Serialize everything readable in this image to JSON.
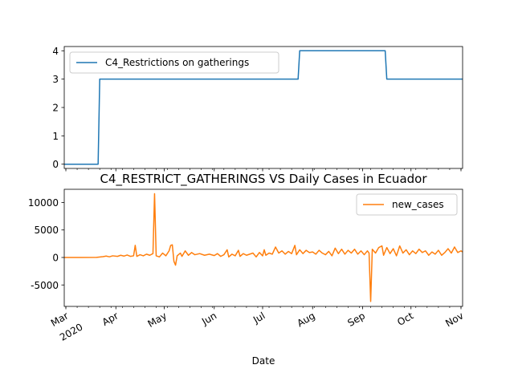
{
  "chart_data": [
    {
      "type": "line",
      "title": "",
      "xlabel": "",
      "ylabel": "",
      "ylim": [
        -0.15,
        4.15
      ],
      "yticks": [
        0,
        1,
        2,
        3,
        4
      ],
      "legend_position": "upper-left",
      "grid": false,
      "series": [
        {
          "name": "C4_Restrictions on gatherings",
          "color": "#1f77b4",
          "points": [
            [
              "2020-02-29",
              0
            ],
            [
              "2020-03-21",
              0
            ],
            [
              "2020-03-22",
              3
            ],
            [
              "2020-07-23",
              3
            ],
            [
              "2020-07-24",
              4
            ],
            [
              "2020-09-15",
              4
            ],
            [
              "2020-09-16",
              3
            ],
            [
              "2020-11-02",
              3
            ]
          ]
        }
      ]
    },
    {
      "type": "line",
      "title": "C4_RESTRICT_GATHERINGS VS Daily Cases in Ecuador",
      "xlabel": "Date",
      "ylabel": "",
      "ylim": [
        -8900,
        12400
      ],
      "yticks": [
        -5000,
        0,
        5000,
        10000
      ],
      "legend_position": "upper-right",
      "grid": false,
      "x_axis": {
        "range": [
          "2020-02-29",
          "2020-11-02"
        ],
        "major_ticks": [
          {
            "date": "2020-03-01",
            "label": "Mar",
            "year_label": "2020"
          },
          {
            "date": "2020-04-01",
            "label": "Apr"
          },
          {
            "date": "2020-05-01",
            "label": "May"
          },
          {
            "date": "2020-06-01",
            "label": "Jun"
          },
          {
            "date": "2020-07-01",
            "label": "Jul"
          },
          {
            "date": "2020-08-01",
            "label": "Aug"
          },
          {
            "date": "2020-09-01",
            "label": "Sep"
          },
          {
            "date": "2020-10-01",
            "label": "Oct"
          },
          {
            "date": "2020-11-01",
            "label": "Nov"
          }
        ]
      },
      "series": [
        {
          "name": "new_cases",
          "color": "#ff7f0e",
          "points": [
            [
              "2020-02-29",
              0
            ],
            [
              "2020-03-10",
              0
            ],
            [
              "2020-03-20",
              20
            ],
            [
              "2020-03-24",
              150
            ],
            [
              "2020-03-26",
              250
            ],
            [
              "2020-03-28",
              120
            ],
            [
              "2020-03-30",
              300
            ],
            [
              "2020-04-02",
              200
            ],
            [
              "2020-04-04",
              400
            ],
            [
              "2020-04-06",
              250
            ],
            [
              "2020-04-08",
              450
            ],
            [
              "2020-04-10",
              200
            ],
            [
              "2020-04-12",
              300
            ],
            [
              "2020-04-13",
              2200
            ],
            [
              "2020-04-14",
              200
            ],
            [
              "2020-04-16",
              500
            ],
            [
              "2020-04-18",
              300
            ],
            [
              "2020-04-20",
              600
            ],
            [
              "2020-04-22",
              400
            ],
            [
              "2020-04-24",
              700
            ],
            [
              "2020-04-25",
              11600
            ],
            [
              "2020-04-26",
              300
            ],
            [
              "2020-04-28",
              100
            ],
            [
              "2020-04-30",
              800
            ],
            [
              "2020-05-02",
              300
            ],
            [
              "2020-05-04",
              1200
            ],
            [
              "2020-05-05",
              2200
            ],
            [
              "2020-05-06",
              2300
            ],
            [
              "2020-05-07",
              -700
            ],
            [
              "2020-05-08",
              -1400
            ],
            [
              "2020-05-09",
              300
            ],
            [
              "2020-05-11",
              800
            ],
            [
              "2020-05-12",
              200
            ],
            [
              "2020-05-14",
              1200
            ],
            [
              "2020-05-16",
              400
            ],
            [
              "2020-05-18",
              900
            ],
            [
              "2020-05-20",
              500
            ],
            [
              "2020-05-23",
              700
            ],
            [
              "2020-05-26",
              400
            ],
            [
              "2020-05-29",
              600
            ],
            [
              "2020-06-01",
              350
            ],
            [
              "2020-06-03",
              700
            ],
            [
              "2020-06-05",
              200
            ],
            [
              "2020-06-07",
              500
            ],
            [
              "2020-06-09",
              1400
            ],
            [
              "2020-06-10",
              100
            ],
            [
              "2020-06-12",
              600
            ],
            [
              "2020-06-14",
              300
            ],
            [
              "2020-06-16",
              1300
            ],
            [
              "2020-06-17",
              200
            ],
            [
              "2020-06-19",
              700
            ],
            [
              "2020-06-21",
              400
            ],
            [
              "2020-06-23",
              600
            ],
            [
              "2020-06-25",
              800
            ],
            [
              "2020-06-27",
              100
            ],
            [
              "2020-06-29",
              900
            ],
            [
              "2020-07-01",
              300
            ],
            [
              "2020-07-02",
              1400
            ],
            [
              "2020-07-03",
              400
            ],
            [
              "2020-07-05",
              800
            ],
            [
              "2020-07-07",
              600
            ],
            [
              "2020-07-09",
              1900
            ],
            [
              "2020-07-11",
              800
            ],
            [
              "2020-07-13",
              1200
            ],
            [
              "2020-07-15",
              600
            ],
            [
              "2020-07-17",
              1100
            ],
            [
              "2020-07-19",
              700
            ],
            [
              "2020-07-21",
              2200
            ],
            [
              "2020-07-22",
              500
            ],
            [
              "2020-07-24",
              1400
            ],
            [
              "2020-07-26",
              700
            ],
            [
              "2020-07-28",
              1300
            ],
            [
              "2020-07-30",
              900
            ],
            [
              "2020-08-01",
              1000
            ],
            [
              "2020-08-03",
              600
            ],
            [
              "2020-08-05",
              1300
            ],
            [
              "2020-08-07",
              800
            ],
            [
              "2020-08-09",
              500
            ],
            [
              "2020-08-11",
              1100
            ],
            [
              "2020-08-13",
              300
            ],
            [
              "2020-08-15",
              1700
            ],
            [
              "2020-08-17",
              700
            ],
            [
              "2020-08-19",
              1500
            ],
            [
              "2020-08-21",
              600
            ],
            [
              "2020-08-23",
              1300
            ],
            [
              "2020-08-25",
              800
            ],
            [
              "2020-08-27",
              1500
            ],
            [
              "2020-08-29",
              600
            ],
            [
              "2020-08-31",
              1200
            ],
            [
              "2020-09-02",
              500
            ],
            [
              "2020-09-04",
              1200
            ],
            [
              "2020-09-05",
              800
            ],
            [
              "2020-09-06",
              -8000
            ],
            [
              "2020-09-07",
              1500
            ],
            [
              "2020-09-09",
              800
            ],
            [
              "2020-09-11",
              1800
            ],
            [
              "2020-09-13",
              2100
            ],
            [
              "2020-09-14",
              400
            ],
            [
              "2020-09-16",
              1800
            ],
            [
              "2020-09-18",
              700
            ],
            [
              "2020-09-20",
              1600
            ],
            [
              "2020-09-22",
              300
            ],
            [
              "2020-09-24",
              2100
            ],
            [
              "2020-09-26",
              800
            ],
            [
              "2020-09-28",
              1400
            ],
            [
              "2020-09-30",
              500
            ],
            [
              "2020-10-02",
              1200
            ],
            [
              "2020-10-04",
              700
            ],
            [
              "2020-10-06",
              1500
            ],
            [
              "2020-10-08",
              900
            ],
            [
              "2020-10-10",
              1200
            ],
            [
              "2020-10-12",
              400
            ],
            [
              "2020-10-14",
              1000
            ],
            [
              "2020-10-16",
              600
            ],
            [
              "2020-10-18",
              1300
            ],
            [
              "2020-10-20",
              400
            ],
            [
              "2020-10-22",
              900
            ],
            [
              "2020-10-24",
              1600
            ],
            [
              "2020-10-26",
              800
            ],
            [
              "2020-10-28",
              1900
            ],
            [
              "2020-10-30",
              900
            ],
            [
              "2020-11-01",
              1200
            ],
            [
              "2020-11-02",
              1000
            ]
          ]
        }
      ]
    }
  ]
}
